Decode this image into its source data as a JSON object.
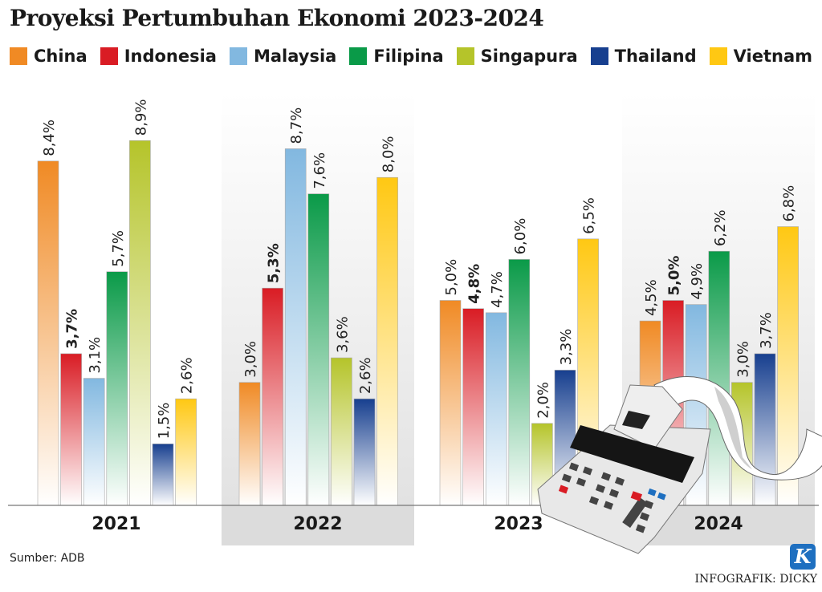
{
  "chart_data": {
    "type": "bar",
    "title": "Proyeksi Pertumbuhan Ekonomi 2023-2024",
    "categories": [
      "2021",
      "2022",
      "2023",
      "2024"
    ],
    "series": [
      {
        "name": "China",
        "color": "#f08a24",
        "values": [
          8.4,
          3.0,
          5.0,
          4.5
        ],
        "labels": [
          "8,4%",
          "3,0%",
          "5,0%",
          "4,5%"
        ]
      },
      {
        "name": "Indonesia",
        "color": "#d91c24",
        "values": [
          3.7,
          5.3,
          4.8,
          5.0
        ],
        "labels": [
          "3,7%",
          "5,3%",
          "4,8%",
          "5,0%"
        ]
      },
      {
        "name": "Malaysia",
        "color": "#82b8e0",
        "values": [
          3.1,
          8.7,
          4.7,
          4.9
        ],
        "labels": [
          "3,1%",
          "8,7%",
          "4,7%",
          "4,9%"
        ]
      },
      {
        "name": "Filipina",
        "color": "#0a9a48",
        "values": [
          5.7,
          7.6,
          6.0,
          6.2
        ],
        "labels": [
          "5,7%",
          "7,6%",
          "6,0%",
          "6,2%"
        ]
      },
      {
        "name": "Singapura",
        "color": "#b5c42a",
        "values": [
          8.9,
          3.6,
          2.0,
          3.0
        ],
        "labels": [
          "8,9%",
          "3,6%",
          "2,0%",
          "3,0%"
        ]
      },
      {
        "name": "Thailand",
        "color": "#173f8f",
        "values": [
          1.5,
          2.6,
          3.3,
          3.7
        ],
        "labels": [
          "1,5%",
          "2,6%",
          "3,3%",
          "3,7%"
        ]
      },
      {
        "name": "Vietnam",
        "color": "#ffc813",
        "values": [
          2.6,
          8.0,
          6.5,
          6.8
        ],
        "labels": [
          "2,6%",
          "8,0%",
          "6,5%",
          "6,8%"
        ]
      }
    ],
    "ylim": [
      0,
      9
    ],
    "xlabel": "",
    "ylabel": "",
    "grid": false,
    "legend": "top-left",
    "highlight_series": "Indonesia"
  },
  "source": "Sumber: ADB",
  "credit": "INFOGRAFIK: DICKY",
  "logo": "K"
}
